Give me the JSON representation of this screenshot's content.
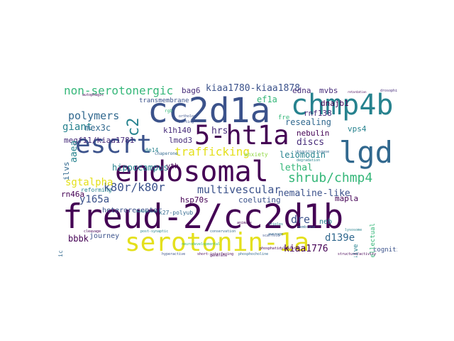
{
  "palette": {
    "dark_purple": "#440154",
    "indigo": "#472c7a",
    "blue": "#3b528b",
    "steel": "#31688e",
    "teal": "#26828e",
    "green": "#35b779",
    "lime": "#90d743",
    "yellow": "#e4e01c"
  },
  "words": [
    {
      "id": "w-freud",
      "text": "freud-2/cc2d1b",
      "color": "#440154"
    },
    {
      "id": "w-serotonin-1a",
      "text": "serotonin-1a",
      "color": "#e4e01c"
    },
    {
      "id": "w-endosomal",
      "text": "endosomal",
      "color": "#440154"
    },
    {
      "id": "w-cc2d1a",
      "text": "cc2d1a",
      "color": "#3b528b"
    },
    {
      "id": "w-chmp4b",
      "text": "chmp4b",
      "color": "#26828e"
    },
    {
      "id": "w-lgd",
      "text": "lgd",
      "color": "#31688e"
    },
    {
      "id": "w-5ht1a",
      "text": "5-ht1a",
      "color": "#440154"
    },
    {
      "id": "w-escrt",
      "text": "escrt",
      "color": "#3b528b"
    },
    {
      "id": "w-shrub",
      "text": "shrub/chmp4",
      "color": "#35b779"
    },
    {
      "id": "w-trafficking",
      "text": "trafficking",
      "color": "#e4e01c"
    },
    {
      "id": "w-non-serotonergic",
      "text": "non-serotonergic",
      "color": "#35b779"
    },
    {
      "id": "w-kiaa1780",
      "text": "kiaa1780-kiaa1878",
      "color": "#3b528b"
    },
    {
      "id": "w-polymers",
      "text": "polymers",
      "color": "#31688e"
    },
    {
      "id": "w-giant",
      "text": "giant",
      "color": "#26828e"
    },
    {
      "id": "w-c2",
      "text": "c2",
      "color": "#26828e"
    },
    {
      "id": "w-multivescular",
      "text": "multivescular",
      "color": "#3b528b"
    },
    {
      "id": "w-k80r",
      "text": "k80r/k80r",
      "color": "#3b528b"
    },
    {
      "id": "w-sgtalpha",
      "text": "sgtalpha",
      "color": "#e4e01c"
    },
    {
      "id": "w-nemaline",
      "text": "nemaline-like",
      "color": "#3b528b"
    },
    {
      "id": "w-lethal",
      "text": "lethal",
      "color": "#35b779"
    },
    {
      "id": "w-y165a",
      "text": "y165a",
      "color": "#3b528b"
    },
    {
      "id": "w-dre",
      "text": "dre",
      "color": "#3b528b"
    },
    {
      "id": "w-kiaa1776",
      "text": "kiaa1776",
      "color": "#440154"
    },
    {
      "id": "w-d139e",
      "text": "d139e",
      "color": "#31688e"
    },
    {
      "id": "w-hippocampus",
      "text": "hippocampus",
      "color": "#26828e"
    },
    {
      "id": "w-leiomodin",
      "text": "leiomodin",
      "color": "#26828e"
    },
    {
      "id": "w-resealing",
      "text": "resealing",
      "color": "#31688e"
    },
    {
      "id": "w-discs",
      "text": "discs",
      "color": "#472c7a"
    },
    {
      "id": "w-hrs",
      "text": "hrs",
      "color": "#472c7a"
    },
    {
      "id": "w-megf11",
      "text": "megf11/kiaa1781",
      "color": "#472c7a"
    },
    {
      "id": "w-bag6",
      "text": "bag6",
      "color": "#472c7a"
    },
    {
      "id": "w-edna",
      "text": "edna",
      "color": "#472c7a"
    },
    {
      "id": "w-mvbs",
      "text": "mvbs",
      "color": "#472c7a"
    },
    {
      "id": "w-ef1a",
      "text": "ef1a",
      "color": "#35b779"
    },
    {
      "id": "w-mex3c",
      "text": "mex3c",
      "color": "#31688e"
    },
    {
      "id": "w-aaea",
      "text": "aaea",
      "color": "#26828e"
    },
    {
      "id": "w-vps4",
      "text": "vps4",
      "color": "#26828e"
    },
    {
      "id": "w-rnf138",
      "text": "rnf138",
      "color": "#472c7a"
    },
    {
      "id": "w-dnajb1",
      "text": "dnajb1",
      "color": "#440154"
    },
    {
      "id": "w-k1h140",
      "text": "k1h140",
      "color": "#472c7a"
    },
    {
      "id": "w-lmod3",
      "text": "lmod3",
      "color": "#472c7a"
    },
    {
      "id": "w-nebulin",
      "text": "nebulin",
      "color": "#440154"
    },
    {
      "id": "w-rn46a",
      "text": "rn46a",
      "color": "#440154"
    },
    {
      "id": "w-ilvs",
      "text": "ilvs",
      "color": "#31688e"
    },
    {
      "id": "w-coeluting",
      "text": "coeluting",
      "color": "#3b528b"
    },
    {
      "id": "w-heteroreceptor",
      "text": "heteroreceptor",
      "color": "#3b528b"
    },
    {
      "id": "w-k27polyub",
      "text": "k27-polyub",
      "color": "#31688e"
    },
    {
      "id": "w-hsp70s",
      "text": "hsp70s",
      "color": "#440154"
    },
    {
      "id": "w-mapla",
      "text": "mapla",
      "color": "#440154"
    },
    {
      "id": "w-neb",
      "text": "neb",
      "color": "#26828e"
    },
    {
      "id": "w-cognitive",
      "text": "cognitive",
      "color": "#3b528b"
    },
    {
      "id": "w-nonaggressive",
      "text": "nonaggressive",
      "color": "#26828e"
    },
    {
      "id": "w-intellectual",
      "text": "intellectual",
      "color": "#35b779"
    },
    {
      "id": "w-bbbk",
      "text": "bbbk",
      "color": "#440154"
    },
    {
      "id": "w-journey",
      "text": "journey",
      "color": "#3b528b"
    },
    {
      "id": "w-pleiotrophic",
      "text": "pleiotrophic",
      "color": "#31688e"
    },
    {
      "id": "w-yth",
      "text": "yth",
      "color": "#440154"
    },
    {
      "id": "w-anxiety",
      "text": "anxiety",
      "color": "#90d743"
    },
    {
      "id": "w-reforming",
      "text": "reforming",
      "color": "#26828e"
    },
    {
      "id": "w-fre",
      "text": "fre",
      "color": "#35b779"
    },
    {
      "id": "w-transmembrane",
      "text": "transmembrane",
      "color": "#3b528b"
    },
    {
      "id": "w-de14",
      "text": "de14",
      "color": "#26828e"
    },
    {
      "id": "w-chaperone",
      "text": "chaperone",
      "color": "#31688e"
    },
    {
      "id": "w-shortinterfering",
      "text": "short-interfering",
      "color": "#440154"
    },
    {
      "id": "w-phosphocholine",
      "text": "phosphocholine",
      "color": "#31688e"
    },
    {
      "id": "w-cleavage",
      "text": "cleavage",
      "color": "#440154"
    },
    {
      "id": "w-conservation",
      "text": "conservation",
      "color": "#31688e"
    },
    {
      "id": "w-drosophila",
      "text": "drosophila",
      "color": "#472c7a"
    },
    {
      "id": "w-autophagic",
      "text": "autophagic",
      "color": "#440154"
    },
    {
      "id": "w-retardation",
      "text": "retardation",
      "color": "#440154"
    },
    {
      "id": "w-scaffold",
      "text": "scaffold",
      "color": "#3b528b"
    },
    {
      "id": "w-hyperactive",
      "text": "hyperactive",
      "color": "#3b528b"
    },
    {
      "id": "w-lysosome",
      "text": "lysosome",
      "color": "#26828e"
    },
    {
      "id": "w-degradation",
      "text": "degradation",
      "color": "#26828e"
    },
    {
      "id": "w-membrane",
      "text": "membrane",
      "color": "#31688e"
    },
    {
      "id": "w-structure",
      "text": "structure/activity",
      "color": "#440154"
    },
    {
      "id": "w-rgb",
      "text": "rgb",
      "color": "#35b779"
    },
    {
      "id": "w-ubiquitin",
      "text": "ubiquitin-ligase",
      "color": "#31688e"
    },
    {
      "id": "w-neurodevelopmental",
      "text": "neurodevelopmental",
      "color": "#35b779"
    },
    {
      "id": "w-phosphatidylserine",
      "text": "phosphatidylserine",
      "color": "#440154"
    },
    {
      "id": "w-postsynaptic",
      "text": "post-synaptic",
      "color": "#26828e"
    },
    {
      "id": "w-behavioral",
      "text": "behavioral",
      "color": "#26828e"
    },
    {
      "id": "w-ortholog",
      "text": "ortholog",
      "color": "#3b528b"
    },
    {
      "id": "w-sorting",
      "text": "sorting",
      "color": "#3b528b"
    },
    {
      "id": "w-animals",
      "text": "animals",
      "color": "#440154"
    },
    {
      "id": "w-average",
      "text": "average",
      "color": "#31688e"
    },
    {
      "id": "w-triples",
      "text": "triples",
      "color": "#26828e"
    },
    {
      "id": "w-generate",
      "text": "generate",
      "color": "#440154"
    }
  ]
}
